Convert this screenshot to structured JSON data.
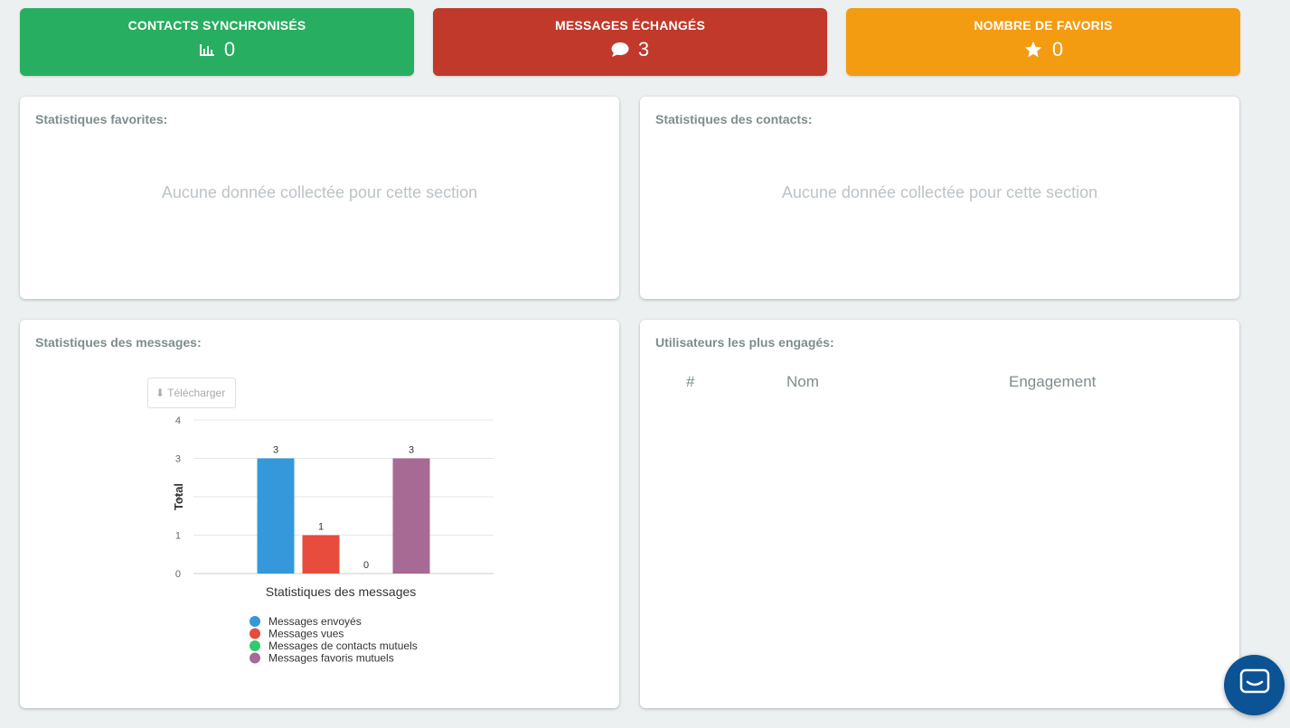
{
  "stats": {
    "contacts": {
      "title": "CONTACTS SYNCHRONISÉS",
      "value": "0",
      "icon": "bar-chart-icon",
      "color": "#27ae60"
    },
    "messages": {
      "title": "MESSAGES ÉCHANGÉS",
      "value": "3",
      "icon": "comment-icon",
      "color": "#c0392b"
    },
    "favoris": {
      "title": "NOMBRE DE FAVORIS",
      "value": "0",
      "icon": "star-icon",
      "color": "#f39c12"
    }
  },
  "panels": {
    "favorites": {
      "title": "Statistiques favorites:",
      "empty": "Aucune donnée collectée pour cette section"
    },
    "contacts": {
      "title": "Statistiques des contacts:",
      "empty": "Aucune donnée collectée pour cette section"
    },
    "messages": {
      "title": "Statistiques des messages:",
      "download_label": "⬇ Télécharger"
    },
    "users": {
      "title": "Utilisateurs les plus engagés:",
      "columns": [
        "#",
        "Nom",
        "Engagement"
      ]
    }
  },
  "chart_data": {
    "type": "bar",
    "title": "",
    "xlabel": "Statistiques des messages",
    "ylabel": "Total",
    "ylim": [
      0,
      4
    ],
    "yticks": [
      "0",
      "1",
      "2",
      "3",
      "4"
    ],
    "grid": true,
    "legend_position": "bottom",
    "series": [
      {
        "name": "Messages envoyés",
        "values": [
          3
        ],
        "color": "#3498db"
      },
      {
        "name": "Messages vues",
        "values": [
          1
        ],
        "color": "#e74c3c"
      },
      {
        "name": "Messages de contacts mutuels",
        "values": [
          0
        ],
        "color": "#2ecc71"
      },
      {
        "name": "Messages favoris mutuels",
        "values": [
          3
        ],
        "color": "#a66a95"
      }
    ]
  },
  "chat_widget": {
    "icon": "chat-icon",
    "color": "#0b5394"
  }
}
